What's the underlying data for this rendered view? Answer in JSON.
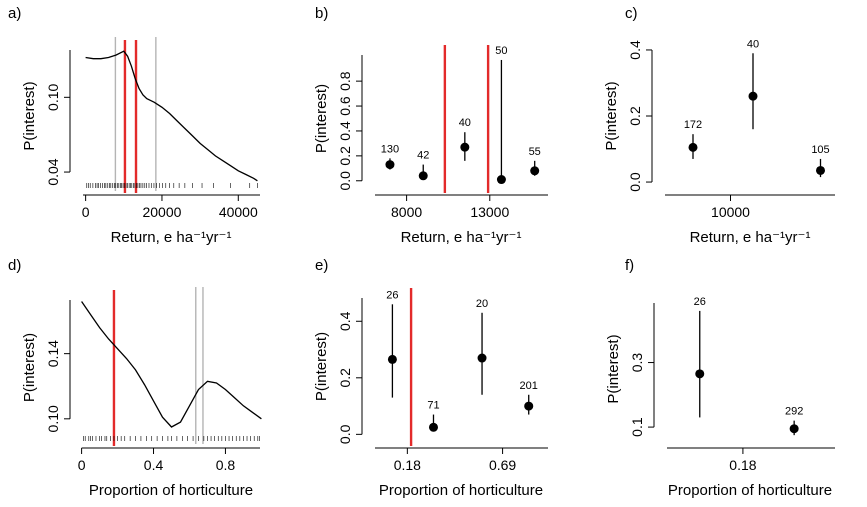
{
  "chart_data": [
    {
      "panel": "a)",
      "type": "line",
      "xlabel": "Return, e ha⁻¹yr⁻¹",
      "ylabel": "P(interest)",
      "xlim": [
        -2000,
        47000
      ],
      "ylim": [
        0.028,
        0.142
      ],
      "xticks": [
        0,
        20000,
        40000
      ],
      "yticks": [
        0.04,
        0.1
      ],
      "x": [
        0,
        2000,
        4000,
        6000,
        8000,
        10000,
        11000,
        12000,
        13000,
        14000,
        15000,
        16000,
        17000,
        18000,
        20000,
        22000,
        24000,
        26000,
        28000,
        30000,
        32000,
        34000,
        36000,
        38000,
        40000,
        42000,
        44000,
        45000
      ],
      "y": [
        0.132,
        0.131,
        0.131,
        0.132,
        0.134,
        0.137,
        0.133,
        0.125,
        0.115,
        0.107,
        0.102,
        0.099,
        0.0975,
        0.096,
        0.092,
        0.087,
        0.081,
        0.075,
        0.069,
        0.063,
        0.058,
        0.053,
        0.049,
        0.045,
        0.041,
        0.038,
        0.035,
        0.033
      ],
      "red_lines": [
        10300,
        13200
      ],
      "grey_lines": [
        7800,
        18400
      ]
    },
    {
      "panel": "b)",
      "type": "scatter",
      "xlabel": "Return, e ha⁻¹yr⁻¹",
      "ylabel": "P(interest)",
      "xlim": [
        5800,
        16800
      ],
      "ylim": [
        -0.05,
        1.05
      ],
      "xticks": [
        8000,
        13000
      ],
      "yticks": [
        0.0,
        0.2,
        0.4,
        0.6,
        0.8
      ],
      "points": [
        {
          "x": 7000,
          "y": 0.13,
          "lo": 0.09,
          "hi": 0.18,
          "n": "130"
        },
        {
          "x": 9000,
          "y": 0.04,
          "lo": 0.01,
          "hi": 0.13,
          "n": "42"
        },
        {
          "x": 11500,
          "y": 0.27,
          "lo": 0.16,
          "hi": 0.39,
          "n": "40"
        },
        {
          "x": 13700,
          "y": 0.01,
          "lo": 0.0,
          "hi": 0.97,
          "n": "50"
        },
        {
          "x": 15700,
          "y": 0.08,
          "lo": 0.04,
          "hi": 0.16,
          "n": "55"
        }
      ],
      "red_lines": [
        10300,
        12900
      ]
    },
    {
      "panel": "c)",
      "type": "scatter",
      "xlabel": "Return, e ha⁻¹yr⁻¹",
      "ylabel": "P(interest)",
      "xlim": [
        5300,
        17300
      ],
      "ylim": [
        -0.015,
        0.415
      ],
      "xticks": [
        10000
      ],
      "yticks": [
        0.0,
        0.2,
        0.4
      ],
      "points": [
        {
          "x": 7500,
          "y": 0.105,
          "lo": 0.07,
          "hi": 0.145,
          "n": "172"
        },
        {
          "x": 11500,
          "y": 0.26,
          "lo": 0.16,
          "hi": 0.39,
          "n": "40"
        },
        {
          "x": 16000,
          "y": 0.035,
          "lo": 0.015,
          "hi": 0.07,
          "n": "105"
        }
      ]
    },
    {
      "panel": "d)",
      "type": "line",
      "xlabel": "Proportion of horticulture",
      "ylabel": "P(interest)",
      "xlim": [
        -0.02,
        1.02
      ],
      "ylim": [
        0.087,
        0.176
      ],
      "xticks": [
        0.0,
        0.4,
        0.8
      ],
      "yticks": [
        0.1,
        0.14
      ],
      "x": [
        0.0,
        0.05,
        0.1,
        0.15,
        0.2,
        0.25,
        0.3,
        0.35,
        0.4,
        0.45,
        0.5,
        0.55,
        0.6,
        0.65,
        0.7,
        0.75,
        0.8,
        0.85,
        0.9,
        0.95,
        1.0
      ],
      "y": [
        0.172,
        0.164,
        0.156,
        0.149,
        0.143,
        0.137,
        0.13,
        0.121,
        0.111,
        0.101,
        0.095,
        0.098,
        0.108,
        0.118,
        0.123,
        0.122,
        0.118,
        0.113,
        0.108,
        0.104,
        0.1
      ],
      "red_lines": [
        0.18
      ],
      "grey_lines": [
        0.635,
        0.675
      ]
    },
    {
      "panel": "e)",
      "type": "scatter",
      "xlabel": "Proportion of horticulture",
      "ylabel": "P(interest)",
      "xlim": [
        -0.02,
        0.96
      ],
      "ylim": [
        -0.02,
        0.5
      ],
      "xticks": [
        0.18,
        0.69
      ],
      "xticklabels": [
        "0.18",
        "0.69"
      ],
      "yticks": [
        0.0,
        0.2,
        0.4
      ],
      "points": [
        {
          "x": 0.1,
          "y": 0.265,
          "lo": 0.13,
          "hi": 0.46,
          "n": "26"
        },
        {
          "x": 0.32,
          "y": 0.025,
          "lo": 0.01,
          "hi": 0.07,
          "n": "71"
        },
        {
          "x": 0.58,
          "y": 0.27,
          "lo": 0.14,
          "hi": 0.43,
          "n": "20"
        },
        {
          "x": 0.83,
          "y": 0.1,
          "lo": 0.07,
          "hi": 0.14,
          "n": "201"
        }
      ],
      "red_lines": [
        0.2
      ]
    },
    {
      "panel": "f)",
      "type": "scatter",
      "xlabel": "Proportion of horticulture",
      "ylabel": "P(interest)",
      "xlim": [
        0.03,
        0.36
      ],
      "ylim": [
        0.06,
        0.5
      ],
      "xticks": [
        0.18
      ],
      "yticks": [
        0.1,
        0.3
      ],
      "points": [
        {
          "x": 0.1,
          "y": 0.265,
          "lo": 0.13,
          "hi": 0.46,
          "n": "26"
        },
        {
          "x": 0.275,
          "y": 0.095,
          "lo": 0.075,
          "hi": 0.12,
          "n": "292"
        }
      ]
    }
  ]
}
